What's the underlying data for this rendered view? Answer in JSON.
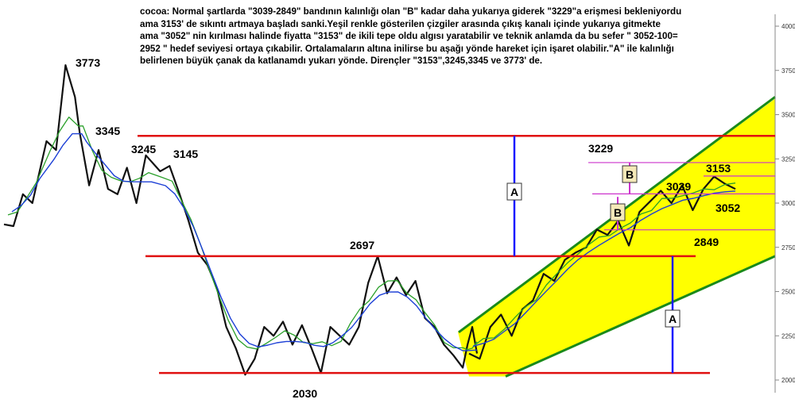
{
  "chart_data": {
    "type": "line",
    "title": "",
    "xlabel": "",
    "ylabel": "",
    "ylim": [
      1950,
      4000
    ],
    "grid": false,
    "annotation_text": [
      "cocoa: Normal şartlarda \"3039-2849\" bandının kalınlığı olan \"B\" kadar daha yukarıya giderek \"3229\"a erişmesi bekleniyordu",
      "ama 3153' de sıkıntı artmaya başladı sanki.Yeşil renkle gösterilen çizgiler arasında çıkış kanalı içinde yukarıya gitmekte",
      "ama \"3052\" nin kırılması halinde fiyatta \"3153\" de ikili tepe oldu algısı yaratabilir ve teknik anlamda da bu sefer \" 3052-100=",
      "2952 \" hedef seviyesi ortaya çıkabilir. Ortalamaların altına inilirse bu aşağı yönde hareket için işaret olabilir.\"A\" ile kalınlığı",
      "belirlenen büyük çanak da katlanamdı yukarı yönde. Dirençler \"3153\",3245,3345 ve 3773' de."
    ],
    "y_axis_ticks": [
      {
        "label": "4000,",
        "value": 4000
      },
      {
        "label": "3750,",
        "value": 3750
      },
      {
        "label": "3500,",
        "value": 3500
      },
      {
        "label": "3250,",
        "value": 3250
      },
      {
        "label": "3000,",
        "value": 3000
      },
      {
        "label": "2750,",
        "value": 2750
      },
      {
        "label": "2500,",
        "value": 2500
      },
      {
        "label": "2250,",
        "value": 2250
      },
      {
        "label": "2000,",
        "value": 2000
      }
    ],
    "level_labels": [
      {
        "text": "3773",
        "value": 3773
      },
      {
        "text": "3345",
        "value": 3345
      },
      {
        "text": "3245",
        "value": 3245
      },
      {
        "text": "3145",
        "value": 3145
      },
      {
        "text": "2697",
        "value": 2697
      },
      {
        "text": "2030",
        "value": 2030
      },
      {
        "text": "3229",
        "value": 3229
      },
      {
        "text": "3153",
        "value": 3153
      },
      {
        "text": "3039",
        "value": 3039
      },
      {
        "text": "3052",
        "value": 3052
      },
      {
        "text": "2849",
        "value": 2849
      }
    ],
    "box_labels": [
      "A",
      "A",
      "B",
      "B"
    ],
    "horizontal_levels_red": [
      3380,
      2700,
      2040
    ],
    "horizontal_levels_magenta": [
      3229,
      3153,
      3052,
      2849
    ],
    "price_path": [
      [
        0,
        2880
      ],
      [
        0.02,
        2870
      ],
      [
        0.04,
        3050
      ],
      [
        0.06,
        3000
      ],
      [
        0.09,
        3350
      ],
      [
        0.11,
        3300
      ],
      [
        0.13,
        3780
      ],
      [
        0.15,
        3600
      ],
      [
        0.16,
        3400
      ],
      [
        0.18,
        3100
      ],
      [
        0.2,
        3300
      ],
      [
        0.22,
        3080
      ],
      [
        0.24,
        3050
      ],
      [
        0.26,
        3200
      ],
      [
        0.28,
        3000
      ],
      [
        0.3,
        3270
      ],
      [
        0.33,
        3180
      ],
      [
        0.35,
        3210
      ],
      [
        0.37,
        3060
      ],
      [
        0.39,
        2900
      ],
      [
        0.41,
        2720
      ],
      [
        0.43,
        2650
      ],
      [
        0.45,
        2520
      ],
      [
        0.47,
        2300
      ],
      [
        0.49,
        2180
      ],
      [
        0.51,
        2030
      ],
      [
        0.53,
        2120
      ],
      [
        0.55,
        2300
      ],
      [
        0.57,
        2250
      ],
      [
        0.59,
        2330
      ],
      [
        0.61,
        2200
      ],
      [
        0.63,
        2310
      ],
      [
        0.65,
        2180
      ],
      [
        0.67,
        2040
      ],
      [
        0.69,
        2300
      ],
      [
        0.71,
        2250
      ],
      [
        0.73,
        2200
      ],
      [
        0.75,
        2300
      ],
      [
        0.77,
        2550
      ],
      [
        0.79,
        2700
      ],
      [
        0.81,
        2490
      ],
      [
        0.83,
        2580
      ],
      [
        0.85,
        2480
      ],
      [
        0.87,
        2560
      ],
      [
        0.89,
        2350
      ],
      [
        0.91,
        2300
      ],
      [
        0.93,
        2200
      ],
      [
        0.95,
        2140
      ],
      [
        0.97,
        2070
      ],
      [
        0.98,
        2200
      ],
      [
        0.99,
        2300
      ],
      [
        1.0,
        2150
      ]
    ],
    "price_path_2": [
      [
        0,
        2150
      ],
      [
        0.04,
        2120
      ],
      [
        0.08,
        2300
      ],
      [
        0.12,
        2370
      ],
      [
        0.16,
        2250
      ],
      [
        0.2,
        2400
      ],
      [
        0.24,
        2450
      ],
      [
        0.28,
        2600
      ],
      [
        0.32,
        2560
      ],
      [
        0.36,
        2680
      ],
      [
        0.4,
        2720
      ],
      [
        0.44,
        2750
      ],
      [
        0.48,
        2850
      ],
      [
        0.52,
        2820
      ],
      [
        0.56,
        2900
      ],
      [
        0.6,
        2760
      ],
      [
        0.64,
        2950
      ],
      [
        0.68,
        3010
      ],
      [
        0.72,
        3070
      ],
      [
        0.76,
        3000
      ],
      [
        0.8,
        3100
      ],
      [
        0.84,
        2960
      ],
      [
        0.88,
        3080
      ],
      [
        0.92,
        3150
      ],
      [
        0.96,
        3110
      ],
      [
        1.0,
        3080
      ]
    ],
    "channel_band": {
      "lower_start": 2000,
      "lower_end": 2680,
      "upper_start": 2200,
      "upper_end": 3600
    }
  }
}
